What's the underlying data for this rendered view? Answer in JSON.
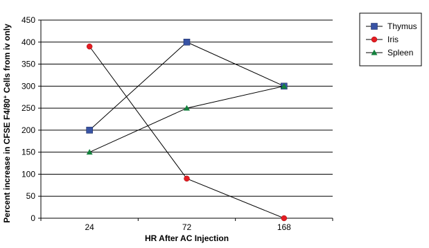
{
  "chart_data": {
    "type": "line",
    "title": "",
    "xlabel": "HR After AC Injection",
    "ylabel_parts": [
      "Percent increase in CFSE F4/80",
      "+",
      " Cells from iv only"
    ],
    "categories": [
      "24",
      "72",
      "168"
    ],
    "yticks": [
      "0",
      "50",
      "100",
      "150",
      "200",
      "250",
      "300",
      "350",
      "400",
      "450"
    ],
    "ylim": [
      0,
      450
    ],
    "grid": true,
    "legend_position": "right",
    "series": [
      {
        "name": "Thymus",
        "values": [
          200,
          400,
          300
        ],
        "color": "#3853a4",
        "marker": "square"
      },
      {
        "name": "Iris",
        "values": [
          390,
          90,
          0
        ],
        "color": "#e41d23",
        "marker": "circle"
      },
      {
        "name": "Spleen",
        "values": [
          150,
          250,
          300
        ],
        "color": "#13813d",
        "marker": "triangle"
      }
    ]
  }
}
